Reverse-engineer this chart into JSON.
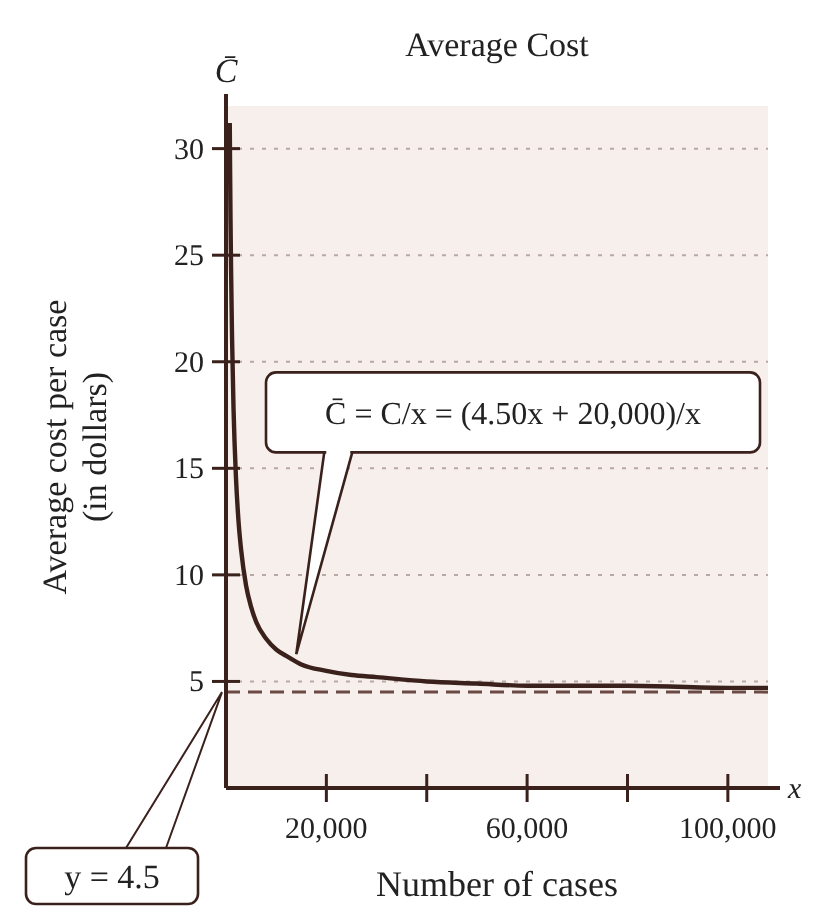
{
  "chart_data": {
    "type": "line",
    "title": "Average Cost",
    "xlabel": "Number of cases",
    "ylabel": "Average cost per case\n(in dollars)",
    "x": [
      750,
      800,
      900,
      1000,
      1200,
      1500,
      2000,
      2500,
      3000,
      4000,
      5000,
      6000,
      8000,
      10000,
      12000,
      15000,
      20000,
      25000,
      30000,
      40000,
      50000,
      60000,
      80000,
      100000,
      108000
    ],
    "series": [
      {
        "color": "#3b211c",
        "values": [
          31.2,
          29.5,
          26.7,
          24.5,
          21.2,
          17.8,
          14.5,
          12.5,
          11.2,
          9.5,
          8.5,
          7.8,
          7,
          6.5,
          6.2,
          5.8,
          5.5,
          5.3,
          5.2,
          5,
          4.9,
          4.8,
          4.8,
          4.7,
          4.7
        ]
      }
    ],
    "xlim": [
      0,
      108000
    ],
    "ylim": [
      0,
      32
    ],
    "xticks": [
      {
        "value": 20000,
        "label": "20,000"
      },
      {
        "value": 40000,
        "label": null
      },
      {
        "value": 60000,
        "label": "60,000"
      },
      {
        "value": 80000,
        "label": null
      },
      {
        "value": 100000,
        "label": "100,000"
      }
    ],
    "yticks": [
      5,
      10,
      15,
      20,
      25,
      30
    ],
    "grid": "y",
    "marker": "none",
    "line_style": "solid",
    "ref_lines": [
      {
        "axis": "y",
        "value": 4.5,
        "label": "y = 4.5",
        "line_style": "dashed",
        "color": "#6b4a44"
      }
    ],
    "annotations": [
      {
        "text": "C̄ = C/x = (4.50x + 20,000)/x",
        "x": 14000,
        "y": 5.9
      },
      "C̄",
      "x"
    ]
  }
}
